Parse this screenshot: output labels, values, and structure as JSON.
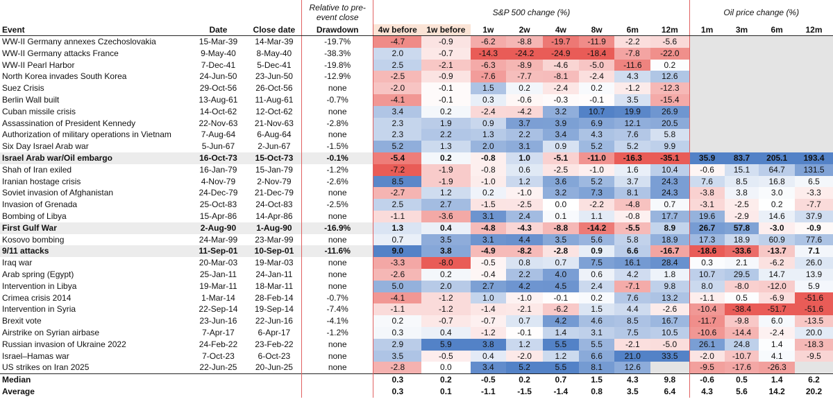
{
  "headers": {
    "group_relative": "Relative to pre-event close",
    "group_sp": "S&P 500 change (%)",
    "group_oil": "Oil price change (%)",
    "cols": [
      "Event",
      "Date",
      "Close date",
      "Drawdown",
      "4w before",
      "1w before",
      "1w",
      "2w",
      "4w",
      "8w",
      "6m",
      "12m",
      "1m",
      "3m",
      "6m",
      "12m"
    ]
  },
  "colors": {
    "negative": "#e8534e",
    "positive": "#4a7bc4",
    "bg_highlight": "#ececec"
  },
  "rows": [
    {
      "event": "WW-II Germany annexes Czechoslovakia",
      "date": "15-Mar-39",
      "close": "14-Mar-39",
      "drawdown": "-19.7%",
      "sp": [
        "-4.7",
        "-0.9",
        "-6.2",
        "-8.8",
        "-19.7",
        "-11.9",
        "-2.2",
        "-5.6"
      ],
      "oil": null
    },
    {
      "event": "WW-II Germany attacks France",
      "date": "9-May-40",
      "close": "8-May-40",
      "drawdown": "-38.3%",
      "sp": [
        "2.0",
        "-0.7",
        "-14.3",
        "-24.2",
        "-24.9",
        "-18.4",
        "-7.8",
        "-22.0"
      ],
      "oil": null
    },
    {
      "event": "WW-II Pearl Harbor",
      "date": "7-Dec-41",
      "close": "5-Dec-41",
      "drawdown": "-19.8%",
      "sp": [
        "2.5",
        "-2.1",
        "-6.3",
        "-8.9",
        "-4.6",
        "-5.0",
        "-11.6",
        "0.2"
      ],
      "oil": null
    },
    {
      "event": "North Korea invades South Korea",
      "date": "24-Jun-50",
      "close": "23-Jun-50",
      "drawdown": "-12.9%",
      "sp": [
        "-2.5",
        "-0.9",
        "-7.6",
        "-7.7",
        "-8.1",
        "-2.4",
        "4.3",
        "12.6"
      ],
      "oil": null
    },
    {
      "event": "Suez Crisis",
      "date": "29-Oct-56",
      "close": "26-Oct-56",
      "drawdown": "none",
      "sp": [
        "-2.0",
        "-0.1",
        "1.5",
        "0.2",
        "-2.4",
        "0.2",
        "-1.2",
        "-12.3"
      ],
      "oil": null
    },
    {
      "event": "Berlin Wall built",
      "date": "13-Aug-61",
      "close": "11-Aug-61",
      "drawdown": "-0.7%",
      "sp": [
        "-4.1",
        "-0.1",
        "0.3",
        "-0.6",
        "-0.3",
        "-0.1",
        "3.5",
        "-15.4"
      ],
      "oil": null
    },
    {
      "event": "Cuban missile crisis",
      "date": "14-Oct-62",
      "close": "12-Oct-62",
      "drawdown": "none",
      "sp": [
        "3.4",
        "0.2",
        "-2.4",
        "-4.2",
        "3.2",
        "10.7",
        "19.9",
        "26.9"
      ],
      "oil": null
    },
    {
      "event": "Assassination of President Kennedy",
      "date": "22-Nov-63",
      "close": "21-Nov-63",
      "drawdown": "-2.8%",
      "sp": [
        "2.3",
        "1.9",
        "0.9",
        "3.7",
        "3.9",
        "6.9",
        "12.1",
        "20.5"
      ],
      "oil": null
    },
    {
      "event": "Authorization of military operations in Vietnam",
      "date": "7-Aug-64",
      "close": "6-Aug-64",
      "drawdown": "none",
      "sp": [
        "2.3",
        "2.2",
        "1.3",
        "2.2",
        "3.4",
        "4.3",
        "7.6",
        "5.8"
      ],
      "oil": null
    },
    {
      "event": "Six Day Israel Arab war",
      "date": "5-Jun-67",
      "close": "2-Jun-67",
      "drawdown": "-1.5%",
      "sp": [
        "5.2",
        "1.3",
        "2.0",
        "3.1",
        "0.9",
        "5.2",
        "5.2",
        "9.9"
      ],
      "oil": null
    },
    {
      "event": "Israel Arab war/Oil embargo",
      "date": "16-Oct-73",
      "close": "15-Oct-73",
      "drawdown": "-0.1%",
      "sp": [
        "-5.4",
        "0.2",
        "-0.8",
        "1.0",
        "-5.1",
        "-11.0",
        "-16.3",
        "-35.1"
      ],
      "oil": [
        "35.9",
        "83.7",
        "205.1",
        "193.4"
      ],
      "bold": true
    },
    {
      "event": "Shah of Iran exiled",
      "date": "16-Jan-79",
      "close": "15-Jan-79",
      "drawdown": "-1.2%",
      "sp": [
        "-7.2",
        "-1.9",
        "-0.8",
        "0.6",
        "-2.5",
        "-1.0",
        "1.6",
        "10.4"
      ],
      "oil": [
        "-0.6",
        "15.1",
        "64.7",
        "131.5"
      ]
    },
    {
      "event": "Iranian hostage crisis",
      "date": "4-Nov-79",
      "close": "2-Nov-79",
      "drawdown": "-2.6%",
      "sp": [
        "8.5",
        "-1.9",
        "-1.0",
        "1.2",
        "3.6",
        "5.2",
        "3.7",
        "24.3"
      ],
      "oil": [
        "7.6",
        "8.5",
        "16.8",
        "6.5"
      ]
    },
    {
      "event": "Soviet invasion of Afghanistan",
      "date": "24-Dec-79",
      "close": "21-Dec-79",
      "drawdown": "none",
      "sp": [
        "-2.7",
        "1.2",
        "0.2",
        "-1.0",
        "3.2",
        "7.3",
        "8.1",
        "24.3"
      ],
      "oil": [
        "-3.8",
        "3.8",
        "3.0",
        "-3.3"
      ]
    },
    {
      "event": "Invasion of Grenada",
      "date": "25-Oct-83",
      "close": "24-Oct-83",
      "drawdown": "-2.5%",
      "sp": [
        "2.5",
        "2.7",
        "-1.5",
        "-2.5",
        "0.0",
        "-2.2",
        "-4.8",
        "0.7"
      ],
      "oil": [
        "-3.1",
        "-2.5",
        "0.2",
        "-7.7"
      ]
    },
    {
      "event": "Bombing of Libya",
      "date": "15-Apr-86",
      "close": "14-Apr-86",
      "drawdown": "none",
      "sp": [
        "-1.1",
        "-3.6",
        "3.1",
        "2.4",
        "0.1",
        "1.1",
        "-0.8",
        "17.7"
      ],
      "oil": [
        "19.6",
        "-2.9",
        "14.6",
        "37.9"
      ]
    },
    {
      "event": "First Gulf War",
      "date": "2-Aug-90",
      "close": "1-Aug-90",
      "drawdown": "-16.9%",
      "sp": [
        "1.3",
        "0.4",
        "-4.8",
        "-4.3",
        "-8.8",
        "-14.2",
        "-5.5",
        "8.9"
      ],
      "oil": [
        "26.7",
        "57.8",
        "-3.0",
        "-0.9"
      ],
      "bold": true
    },
    {
      "event": "Kosovo bombing",
      "date": "24-Mar-99",
      "close": "23-Mar-99",
      "drawdown": "none",
      "sp": [
        "0.7",
        "3.5",
        "3.1",
        "4.4",
        "3.5",
        "5.6",
        "5.8",
        "18.9"
      ],
      "oil": [
        "17.3",
        "18.9",
        "60.9",
        "77.6"
      ]
    },
    {
      "event": "9/11 attacks",
      "date": "11-Sep-01",
      "close": "10-Sep-01",
      "drawdown": "-11.6%",
      "sp": [
        "9.0",
        "3.8",
        "-4.9",
        "-8.2",
        "-2.8",
        "0.9",
        "6.6",
        "-16.7"
      ],
      "oil": [
        "-18.6",
        "-33.6",
        "-13.7",
        "7.1"
      ],
      "bold": true
    },
    {
      "event": "Iraq war",
      "date": "20-Mar-03",
      "close": "19-Mar-03",
      "drawdown": "none",
      "sp": [
        "-3.3",
        "-8.0",
        "-0.5",
        "0.8",
        "0.7",
        "7.5",
        "16.1",
        "28.4"
      ],
      "oil": [
        "0.3",
        "2.1",
        "-6.2",
        "26.0"
      ]
    },
    {
      "event": "Arab spring (Egypt)",
      "date": "25-Jan-11",
      "close": "24-Jan-11",
      "drawdown": "none",
      "sp": [
        "-2.6",
        "0.2",
        "-0.4",
        "2.2",
        "4.0",
        "0.6",
        "4.2",
        "1.8"
      ],
      "oil": [
        "10.7",
        "29.5",
        "14.7",
        "13.9"
      ]
    },
    {
      "event": "Intervention in Libya",
      "date": "19-Mar-11",
      "close": "18-Mar-11",
      "drawdown": "none",
      "sp": [
        "5.0",
        "2.0",
        "2.7",
        "4.2",
        "4.5",
        "2.4",
        "-7.1",
        "9.8"
      ],
      "oil": [
        "8.0",
        "-8.0",
        "-12.0",
        "5.9"
      ]
    },
    {
      "event": "Crimea crisis 2014",
      "date": "1-Mar-14",
      "close": "28-Feb-14",
      "drawdown": "-0.7%",
      "sp": [
        "-4.1",
        "-1.2",
        "1.0",
        "-1.0",
        "-0.1",
        "0.2",
        "7.6",
        "13.2"
      ],
      "oil": [
        "-1.1",
        "0.5",
        "-6.9",
        "-51.6"
      ]
    },
    {
      "event": "Intervention in Syria",
      "date": "22-Sep-14",
      "close": "19-Sep-14",
      "drawdown": "-7.4%",
      "sp": [
        "-1.1",
        "-1.2",
        "-1.4",
        "-2.1",
        "-6.2",
        "1.5",
        "4.4",
        "-2.6"
      ],
      "oil": [
        "-10.4",
        "-38.4",
        "-51.7",
        "-51.6"
      ]
    },
    {
      "event": "Brexit vote",
      "date": "23-Jun-16",
      "close": "22-Jun-16",
      "drawdown": "-4.1%",
      "sp": [
        "0.2",
        "-0.7",
        "-0.7",
        "0.7",
        "4.2",
        "4.6",
        "8.5",
        "16.7"
      ],
      "oil": [
        "-11.7",
        "-9.8",
        "6.0",
        "-13.5"
      ]
    },
    {
      "event": "Airstrike on Syrian airbase",
      "date": "7-Apr-17",
      "close": "6-Apr-17",
      "drawdown": "-1.2%",
      "sp": [
        "0.3",
        "0.4",
        "-1.2",
        "-0.1",
        "1.4",
        "3.1",
        "7.5",
        "10.5"
      ],
      "oil": [
        "-10.6",
        "-14.4",
        "-2.4",
        "20.0"
      ]
    },
    {
      "event": "Russian invasion of Ukraine 2022",
      "date": "24-Feb-22",
      "close": "23-Feb-22",
      "drawdown": "none",
      "sp": [
        "2.9",
        "5.9",
        "3.8",
        "1.2",
        "5.5",
        "5.5",
        "-2.1",
        "-5.0"
      ],
      "oil": [
        "26.1",
        "24.8",
        "1.4",
        "-18.3"
      ]
    },
    {
      "event": "Israel–Hamas war",
      "date": "7-Oct-23",
      "close": "6-Oct-23",
      "drawdown": "none",
      "sp": [
        "3.5",
        "-0.5",
        "0.4",
        "-2.0",
        "1.2",
        "6.6",
        "21.0",
        "33.5"
      ],
      "oil": [
        "-2.0",
        "-10.7",
        "4.1",
        "-9.5"
      ]
    },
    {
      "event": "US strikes on Iran 2025",
      "date": "22-Jun-25",
      "close": "20-Jun-25",
      "drawdown": "none",
      "sp": [
        "-2.8",
        "0.0",
        "3.4",
        "5.2",
        "5.5",
        "8.1",
        "12.6",
        null
      ],
      "oil": [
        "-9.5",
        "-17.6",
        "-26.3",
        null
      ]
    }
  ],
  "summary": [
    {
      "label": "Median",
      "sp": [
        "0.3",
        "0.2",
        "-0.5",
        "0.2",
        "0.7",
        "1.5",
        "4.3",
        "9.8"
      ],
      "oil": [
        "-0.6",
        "0.5",
        "1.4",
        "6.2"
      ]
    },
    {
      "label": "Average",
      "sp": [
        "0.3",
        "0.1",
        "-1.1",
        "-1.5",
        "-1.4",
        "0.8",
        "3.5",
        "6.4"
      ],
      "oil": [
        "4.3",
        "5.6",
        "14.2",
        "20.2"
      ]
    }
  ]
}
